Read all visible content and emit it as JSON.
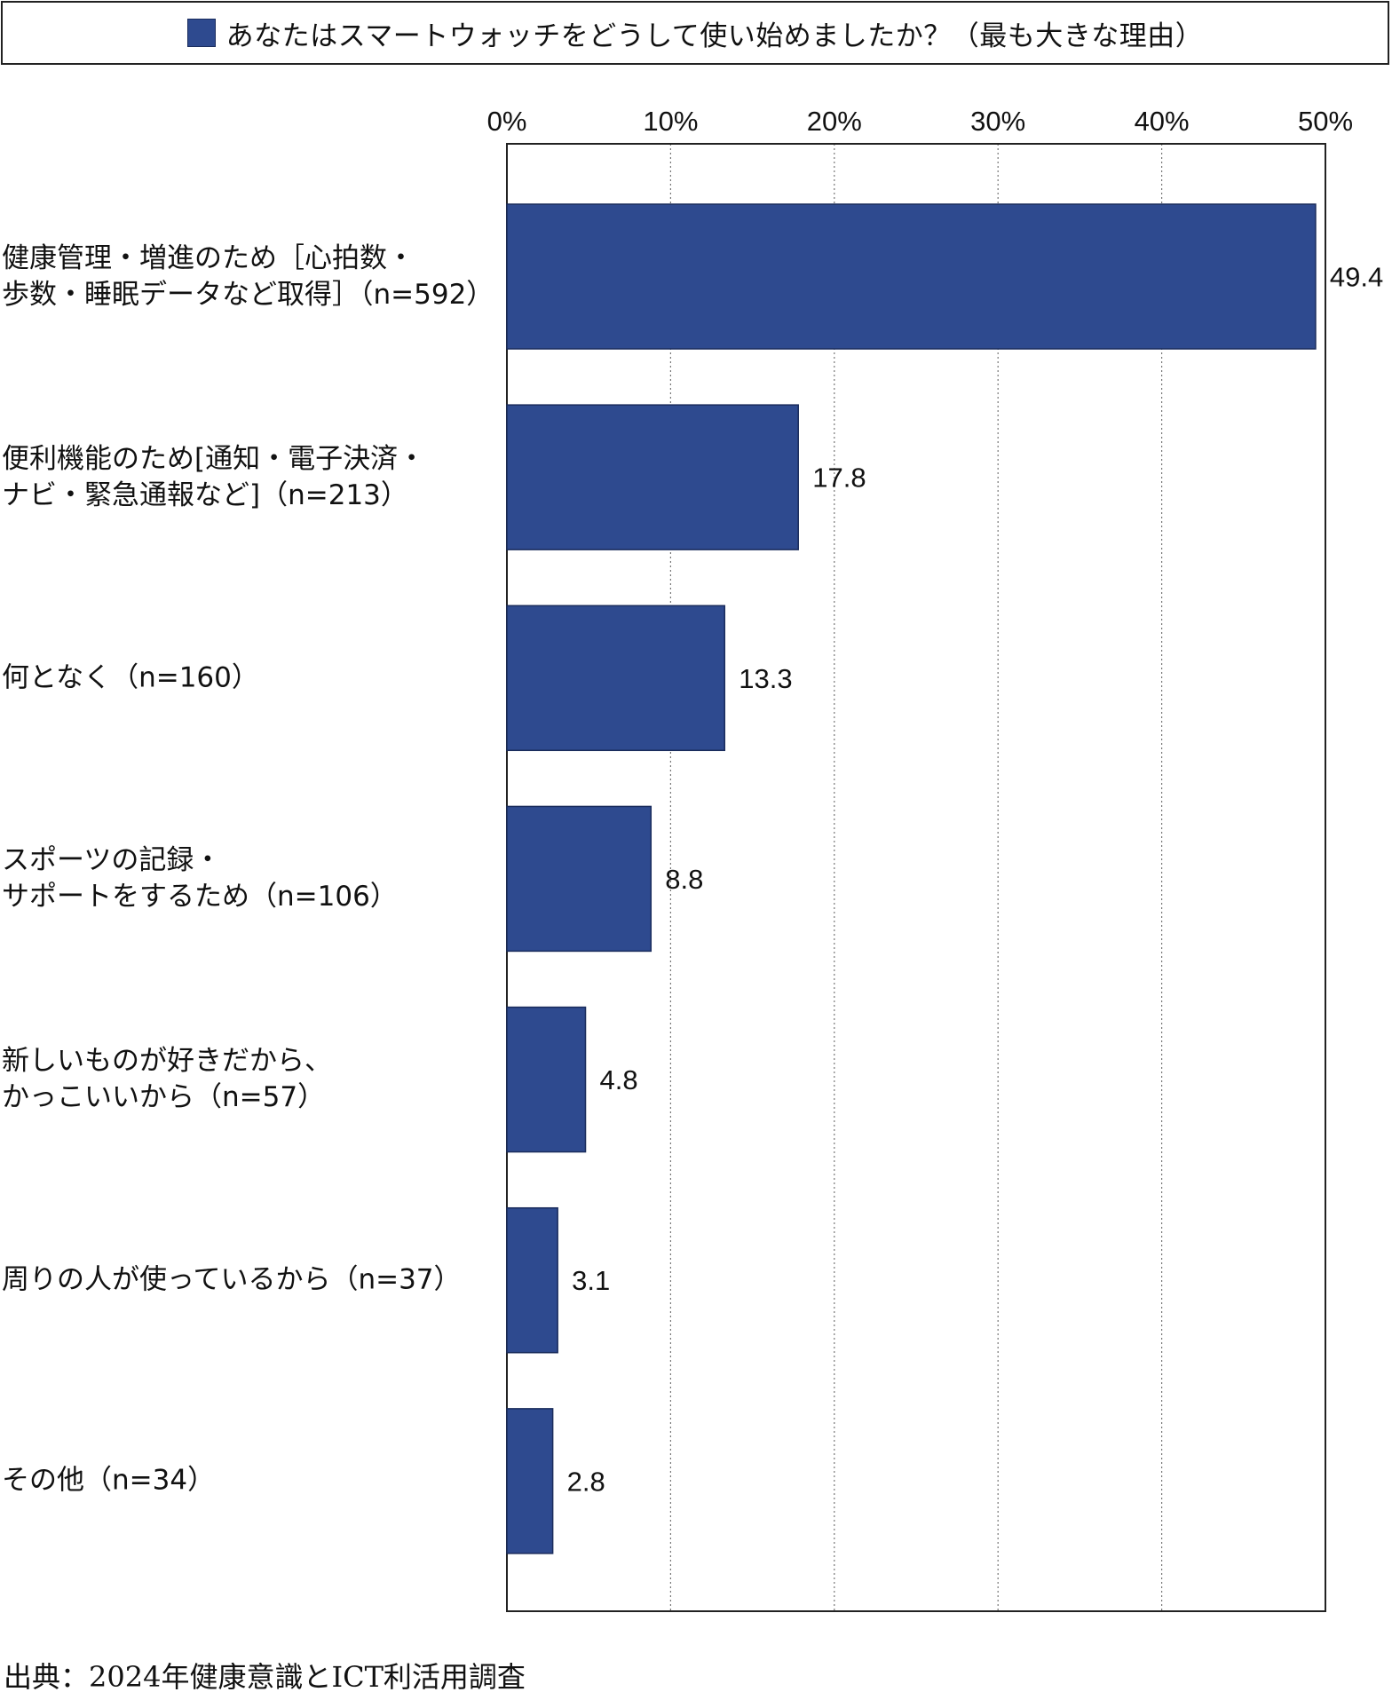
{
  "colors": {
    "bar": "#2e4a8f",
    "bar_edge": "#1a2c5c",
    "grid": "#777777",
    "frame": "#222222"
  },
  "chart_data": {
    "type": "bar",
    "orientation": "horizontal",
    "title": "あなたはスマートウォッチをどうして使い始めましたか？（最も大きな理由）",
    "legend": "top",
    "grid": true,
    "xlim": [
      0,
      50
    ],
    "x_ticks": [
      0,
      10,
      20,
      30,
      40,
      50
    ],
    "x_tick_labels": [
      "0%",
      "10%",
      "20%",
      "30%",
      "40%",
      "50%"
    ],
    "categories": [
      "健康管理・増進のため［心拍数・\n歩数・睡眠データなど取得］（n=592）",
      "便利機能のため[通知・電子決済・\nナビ・緊急通報など]（n=213）",
      "何となく（n=160）",
      "スポーツの記録・\nサポートをするため（n=106）",
      "新しいものが好きだから、\nかっこいいから（n=57）",
      "周りの人が使っているから（n=37）",
      "その他（n=34）"
    ],
    "values": [
      49.4,
      17.8,
      13.3,
      8.8,
      4.8,
      3.1,
      2.8
    ],
    "value_labels": [
      "49.4",
      "17.8",
      "13.3",
      "8.8",
      "4.8",
      "3.1",
      "2.8"
    ]
  },
  "source": "出典：2024年健康意識とICT利活用調査"
}
